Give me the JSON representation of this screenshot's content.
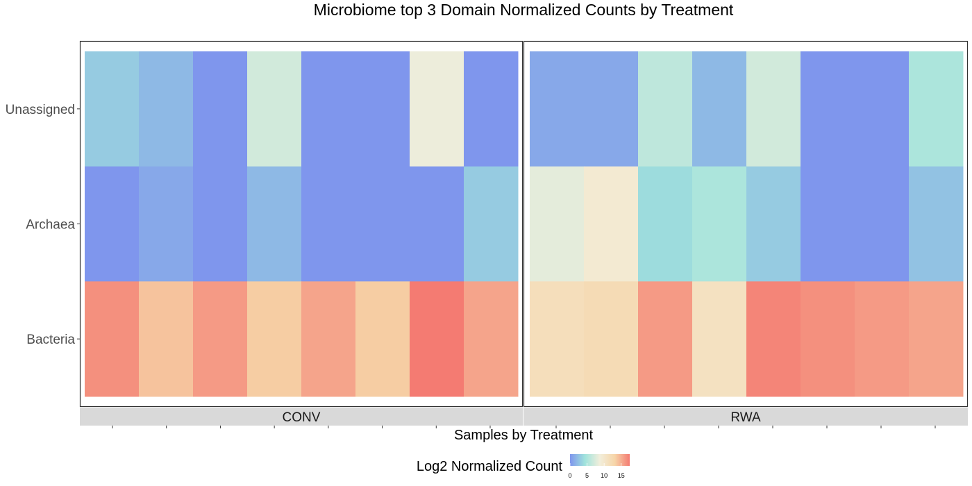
{
  "chart_data": {
    "type": "heatmap",
    "title": "Microbiome top 3 Domain Normalized Counts by Treatment",
    "xlabel": "Samples by Treatment",
    "ylabel": "",
    "rows": [
      "Unassigned",
      "Archaea",
      "Bacteria"
    ],
    "facets": [
      {
        "name": "CONV",
        "values": [
          [
            3.0,
            2.0,
            0.0,
            7.0,
            0.0,
            0.0,
            8.5,
            0.0
          ],
          [
            0.0,
            1.0,
            0.0,
            2.0,
            0.0,
            0.0,
            0.0,
            3.0
          ],
          [
            16.5,
            14.0,
            16.0,
            13.5,
            15.5,
            13.5,
            17.5,
            15.5
          ]
        ]
      },
      {
        "name": "RWA",
        "values": [
          [
            1.0,
            1.0,
            6.0,
            2.0,
            7.0,
            0.0,
            0.0,
            5.0
          ],
          [
            8.0,
            9.5,
            4.0,
            5.0,
            3.0,
            0.0,
            0.0,
            2.5
          ],
          [
            11.5,
            12.0,
            16.0,
            11.0,
            17.0,
            16.5,
            16.0,
            15.5
          ]
        ]
      }
    ],
    "legend": {
      "title": "Log2 Normalized Count",
      "position": "bottom",
      "min": 0,
      "max": 17.5,
      "ticks": [
        0,
        5,
        10,
        15
      ],
      "colors": [
        "#7f96ed",
        "#a0e3dc",
        "#f2eedb",
        "#f6d5a8",
        "#f47b72"
      ]
    },
    "grid": false
  }
}
